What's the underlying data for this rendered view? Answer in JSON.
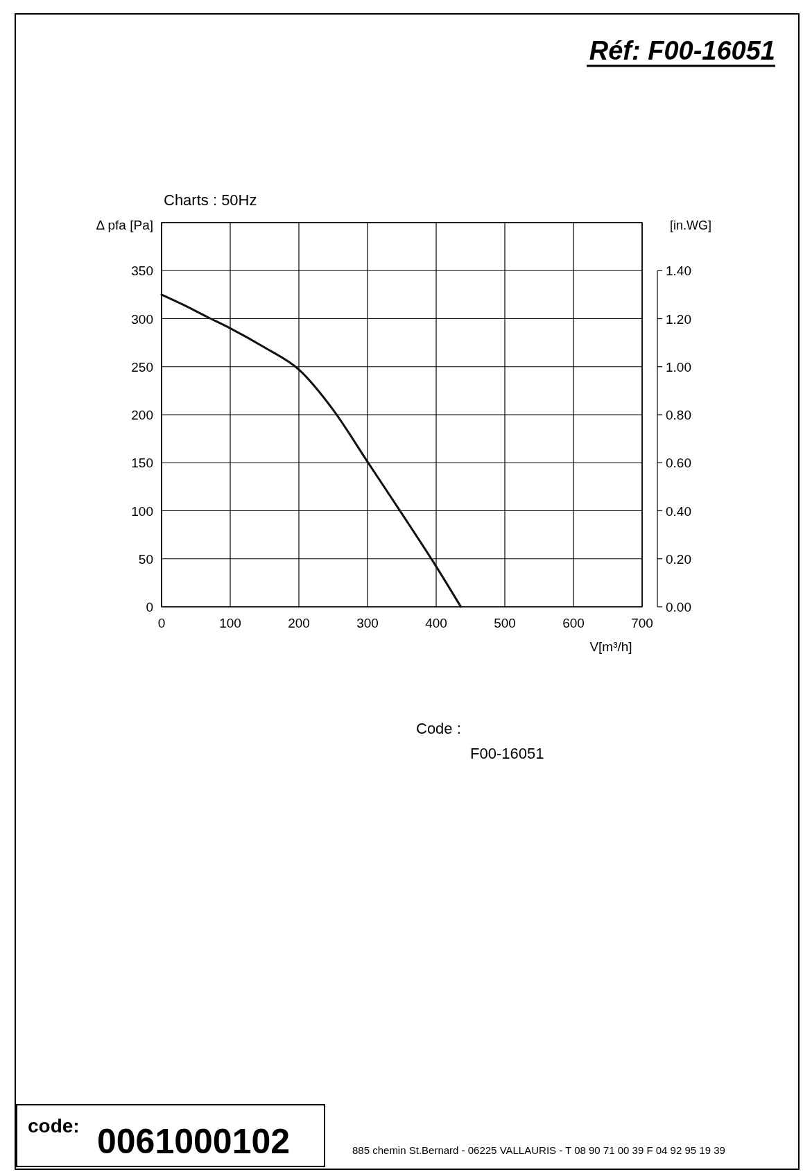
{
  "chart_data": {
    "type": "line",
    "title": "Charts : 50Hz",
    "xlabel": "V[m³/h]",
    "ylabel": "Δ pfa [Pa]",
    "y2label": "[in.WG]",
    "x": [
      0,
      30,
      66,
      100,
      150,
      200,
      250,
      300,
      350,
      400,
      436
    ],
    "series": [
      {
        "color": "#111111",
        "values": [
          325,
          315,
          302,
          290,
          270,
          247,
          205,
          151,
          97,
          42,
          0
        ]
      }
    ],
    "xlim": [
      0,
      700
    ],
    "xticks": [
      0,
      100,
      200,
      300,
      400,
      500,
      600,
      700
    ],
    "ylim": [
      0,
      400
    ],
    "yticks": [
      0,
      50,
      100,
      150,
      200,
      250,
      300,
      350
    ],
    "y2lim": [
      0,
      1.6
    ],
    "y2ticks": [
      {
        "value": 0,
        "label": "0.00"
      },
      {
        "value": 0.2,
        "label": "0.20"
      },
      {
        "value": 0.4,
        "label": "0.40"
      },
      {
        "value": 0.6,
        "label": "0.60"
      },
      {
        "value": 0.8,
        "label": "0.80"
      },
      {
        "value": 1,
        "label": "1.00"
      },
      {
        "value": 1.2,
        "label": "1.20"
      },
      {
        "value": 1.4,
        "label": "1.40"
      }
    ],
    "grid": true,
    "marker": "none",
    "line_style": "solid",
    "annotations": [
      "Réf: F00-16051",
      "Code :",
      "F00-16051",
      "code:",
      "0061000102",
      "885 chemin St.Bernard  -  06225 VALLAURIS  -  T 08 90 71 00 39   F 04 92 95 19 39"
    ]
  }
}
